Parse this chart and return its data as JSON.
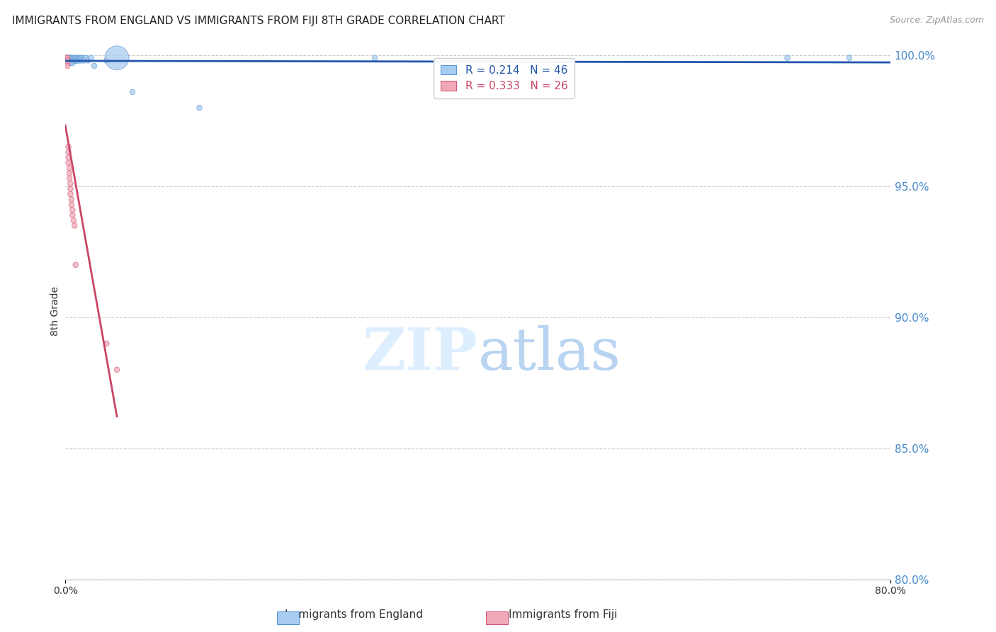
{
  "title": "IMMIGRANTS FROM ENGLAND VS IMMIGRANTS FROM FIJI 8TH GRADE CORRELATION CHART",
  "source": "Source: ZipAtlas.com",
  "ylabel_left": "8th Grade",
  "xlim": [
    0.0,
    0.8
  ],
  "ylim": [
    0.8,
    1.005
  ],
  "x_ticks": [
    0.0,
    0.8
  ],
  "x_tick_labels": [
    "0.0%",
    "80.0%"
  ],
  "y_ticks": [
    0.8,
    0.85,
    0.9,
    0.95,
    1.0
  ],
  "y_tick_labels": [
    "80.0%",
    "85.0%",
    "90.0%",
    "95.0%",
    "100.0%"
  ],
  "legend_england": {
    "R": 0.214,
    "N": 46
  },
  "legend_fiji": {
    "R": 0.333,
    "N": 26
  },
  "england_color": "#a8ccf0",
  "fiji_color": "#f0a8b8",
  "england_edge_color": "#5090d0",
  "fiji_edge_color": "#d05070",
  "trendline_england_color": "#2255aa",
  "trendline_fiji_color": "#cc4466",
  "watermark_color": "#ddeeff",
  "england_x": [
    0.001,
    0.002,
    0.002,
    0.003,
    0.003,
    0.003,
    0.004,
    0.004,
    0.004,
    0.005,
    0.005,
    0.005,
    0.005,
    0.006,
    0.006,
    0.007,
    0.007,
    0.007,
    0.008,
    0.009,
    0.009,
    0.01,
    0.01,
    0.011,
    0.011,
    0.012,
    0.013,
    0.013,
    0.014,
    0.015,
    0.015,
    0.016,
    0.017,
    0.018,
    0.019,
    0.02,
    0.022,
    0.025,
    0.028,
    0.04,
    0.05,
    0.065,
    0.13,
    0.3,
    0.7,
    0.76
  ],
  "england_y": [
    0.999,
    0.999,
    0.998,
    0.999,
    0.999,
    0.998,
    0.999,
    0.999,
    0.998,
    0.999,
    0.999,
    0.998,
    0.997,
    0.999,
    0.998,
    0.999,
    0.998,
    0.997,
    0.999,
    0.999,
    0.998,
    0.999,
    0.998,
    0.999,
    0.998,
    0.999,
    0.999,
    0.998,
    0.999,
    0.999,
    0.998,
    0.999,
    0.999,
    0.998,
    0.999,
    0.999,
    0.998,
    0.999,
    0.996,
    0.998,
    0.999,
    0.986,
    0.98,
    0.999,
    0.999,
    0.999
  ],
  "england_sizes": [
    30,
    30,
    30,
    30,
    30,
    30,
    30,
    30,
    30,
    30,
    30,
    30,
    30,
    30,
    30,
    30,
    30,
    30,
    30,
    30,
    30,
    30,
    30,
    30,
    30,
    30,
    30,
    30,
    30,
    30,
    30,
    30,
    30,
    30,
    30,
    30,
    30,
    30,
    30,
    30,
    600,
    30,
    30,
    30,
    30,
    30
  ],
  "fiji_x": [
    0.001,
    0.001,
    0.001,
    0.002,
    0.002,
    0.002,
    0.002,
    0.003,
    0.003,
    0.003,
    0.003,
    0.004,
    0.004,
    0.004,
    0.005,
    0.005,
    0.005,
    0.006,
    0.006,
    0.007,
    0.007,
    0.008,
    0.009,
    0.01,
    0.04,
    0.05
  ],
  "fiji_y": [
    0.999,
    0.999,
    0.998,
    0.999,
    0.998,
    0.997,
    0.996,
    0.965,
    0.963,
    0.961,
    0.959,
    0.957,
    0.955,
    0.953,
    0.951,
    0.949,
    0.947,
    0.945,
    0.943,
    0.941,
    0.939,
    0.937,
    0.935,
    0.92,
    0.89,
    0.88
  ],
  "fiji_sizes": [
    30,
    30,
    30,
    30,
    30,
    30,
    30,
    30,
    30,
    30,
    30,
    30,
    30,
    30,
    30,
    30,
    30,
    30,
    30,
    30,
    30,
    30,
    30,
    30,
    30,
    30
  ]
}
